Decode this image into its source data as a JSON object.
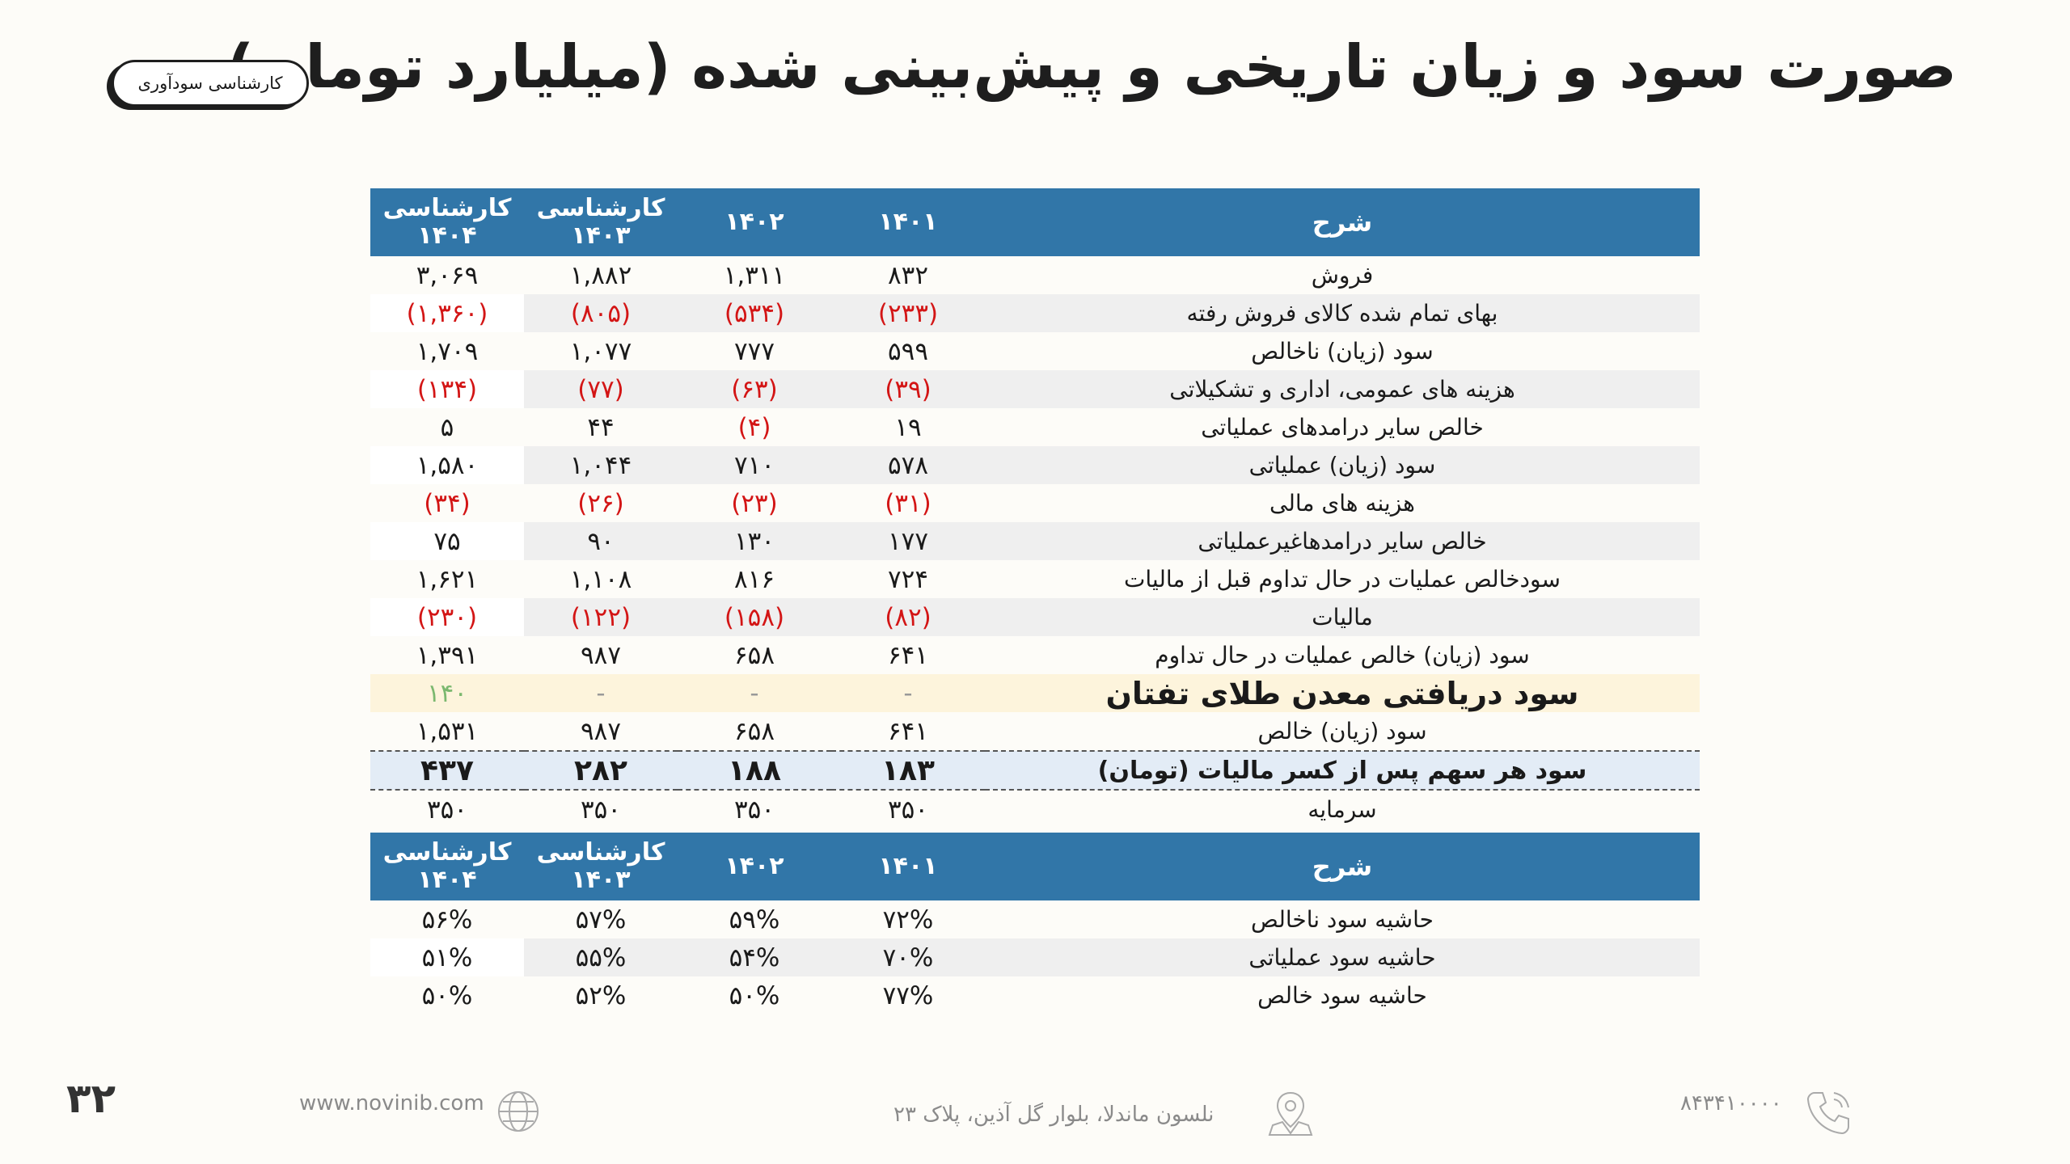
{
  "title": "صورت سود و زیان تاریخی و پیش‌بینی شده (میلیارد تومان)",
  "badge": "کارشناسی سودآوری",
  "header": {
    "desc": "شرح",
    "cols": [
      "۱۴۰۱",
      "۱۴۰۲",
      "کارشناسی\n۱۴۰۳",
      "کارشناسی\n۱۴۰۴"
    ]
  },
  "rows": [
    {
      "label": "فروش",
      "values": [
        "۸۳۲",
        "۱,۳۱۱",
        "۱,۸۸۲",
        "۳,۰۶۹"
      ]
    },
    {
      "label": "بهای تمام شده کالای فروش رفته",
      "values": [
        "(۲۳۳)",
        "(۵۳۴)",
        "(۸۰۵)",
        "(۱,۳۶۰)"
      ]
    },
    {
      "label": "سود (زیان) ناخالص",
      "values": [
        "۵۹۹",
        "۷۷۷",
        "۱,۰۷۷",
        "۱,۷۰۹"
      ]
    },
    {
      "label": "هزینه های عمومی، اداری و تشکیلاتی",
      "values": [
        "(۳۹)",
        "(۶۳)",
        "(۷۷)",
        "(۱۳۴)"
      ]
    },
    {
      "label": "خالص سایر درامدهای  عملیاتی",
      "values": [
        "۱۹",
        "(۴)",
        "۴۴",
        "۵"
      ]
    },
    {
      "label": "سود (زیان) عملیاتی",
      "values": [
        "۵۷۸",
        "۷۱۰",
        "۱,۰۴۴",
        "۱,۵۸۰"
      ]
    },
    {
      "label": "هزینه های مالی",
      "values": [
        "(۳۱)",
        "(۲۳)",
        "(۲۶)",
        "(۳۴)"
      ]
    },
    {
      "label": "خالص سایر درامدهاغیرعملیاتی",
      "values": [
        "۱۷۷",
        "۱۳۰",
        "۹۰",
        "۷۵"
      ]
    },
    {
      "label": "سودخالص عملیات در حال تداوم قبل از مالیات",
      "values": [
        "۷۲۴",
        "۸۱۶",
        "۱,۱۰۸",
        "۱,۶۲۱"
      ]
    },
    {
      "label": "مالیات",
      "values": [
        "(۸۲)",
        "(۱۵۸)",
        "(۱۲۲)",
        "(۲۳۰)"
      ]
    },
    {
      "label": "سود (زیان) خالص عملیات در حال تداوم",
      "values": [
        "۶۴۱",
        "۶۵۸",
        "۹۸۷",
        "۱,۳۹۱"
      ]
    },
    {
      "label": "سود دریافتی معدن طلای تفتان",
      "values": [
        "-",
        "-",
        "-",
        "۱۴۰"
      ]
    },
    {
      "label": "سود (زیان) خالص",
      "values": [
        "۶۴۱",
        "۶۵۸",
        "۹۸۷",
        "۱,۵۳۱"
      ]
    },
    {
      "label": "سود هر سهم پس از کسر مالیات (تومان)",
      "values": [
        "۱۸۳",
        "۱۸۸",
        "۲۸۲",
        "۴۳۷"
      ]
    },
    {
      "label": "سرمایه",
      "values": [
        "۳۵۰",
        "۳۵۰",
        "۳۵۰",
        "۳۵۰"
      ]
    }
  ],
  "margins_header": {
    "desc": "شرح",
    "cols": [
      "۱۴۰۱",
      "۱۴۰۲",
      "کارشناسی\n۱۴۰۳",
      "کارشناسی\n۱۴۰۴"
    ]
  },
  "margins": [
    {
      "label": "حاشیه سود ناخالص",
      "values": [
        "۷۲%",
        "۵۹%",
        "۵۷%",
        "۵۶%"
      ]
    },
    {
      "label": "حاشیه سود عملیاتی",
      "values": [
        "۷۰%",
        "۵۴%",
        "۵۵%",
        "۵۱%"
      ]
    },
    {
      "label": "حاشیه سود خالص",
      "values": [
        "۷۷%",
        "۵۰%",
        "۵۲%",
        "۵۰%"
      ]
    }
  ],
  "footer": {
    "website": "www.novinib.com",
    "address": "نلسون ماندلا، بلوار گل آذین، پلاک ۲۳",
    "phone": "۸۴۳۴۱۰۰۰۰"
  },
  "page_number": "۳۲",
  "colors": {
    "header_bg": "#3176a8",
    "negative": "#d31515",
    "highlight_row": "#fdf4dc",
    "eps_row": "#e3ecf6"
  },
  "icons": [
    "globe-icon",
    "location-pin-icon",
    "phone-icon"
  ]
}
